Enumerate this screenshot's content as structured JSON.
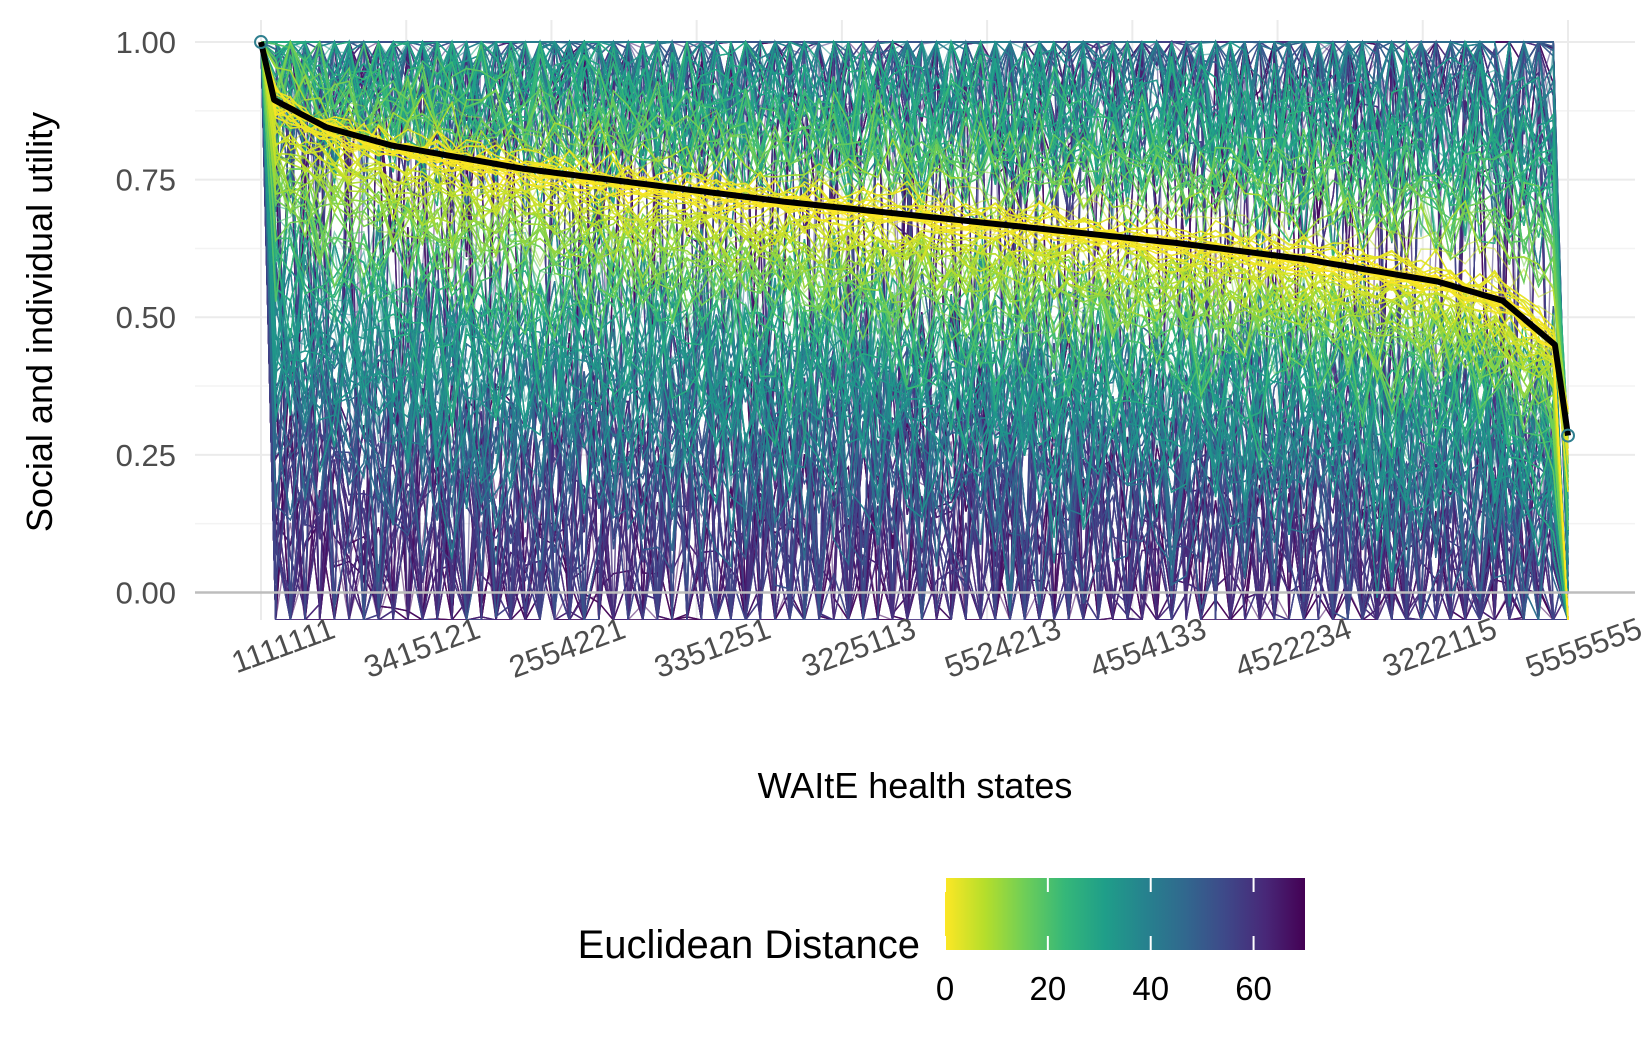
{
  "chart_data": {
    "type": "line",
    "xlabel": "WAItE health states",
    "ylabel": "Social and individual utility",
    "x_tick_labels": [
      "1111111",
      "3415121",
      "2554221",
      "3351251",
      "3225113",
      "5524213",
      "4554133",
      "4522234",
      "3222115",
      "5555555"
    ],
    "y_ticks": [
      0.0,
      0.25,
      0.5,
      0.75,
      1.0
    ],
    "y_tick_labels": [
      "0.00",
      "0.25",
      "0.50",
      "0.75",
      "1.00"
    ],
    "ylim": [
      -0.05,
      1.04
    ],
    "grid": true,
    "legend": {
      "title": "Euclidean Distance",
      "placement": "bottom",
      "range": [
        0,
        70
      ],
      "ticks": [
        0,
        20,
        40,
        60
      ],
      "tick_labels": [
        "0",
        "20",
        "40",
        "60"
      ],
      "colors": [
        "#FDE725",
        "#B5DE2B",
        "#6ECE58",
        "#35B779",
        "#1F9E89",
        "#26828E",
        "#31688E",
        "#3E4989",
        "#482878",
        "#440154"
      ]
    },
    "social_curve": {
      "color": "#000000",
      "x_position": [
        0,
        0.01,
        0.05,
        0.1,
        0.2,
        0.3,
        0.4,
        0.5,
        0.6,
        0.7,
        0.8,
        0.9,
        0.95,
        0.99,
        1.0
      ],
      "values": [
        1.0,
        0.895,
        0.845,
        0.812,
        0.77,
        0.74,
        0.71,
        0.685,
        0.66,
        0.635,
        0.605,
        0.565,
        0.53,
        0.45,
        0.285
      ]
    },
    "endpoints": [
      {
        "label": "1111111",
        "value": 1.0
      },
      {
        "label": "5555555",
        "value": 0.285
      }
    ]
  }
}
